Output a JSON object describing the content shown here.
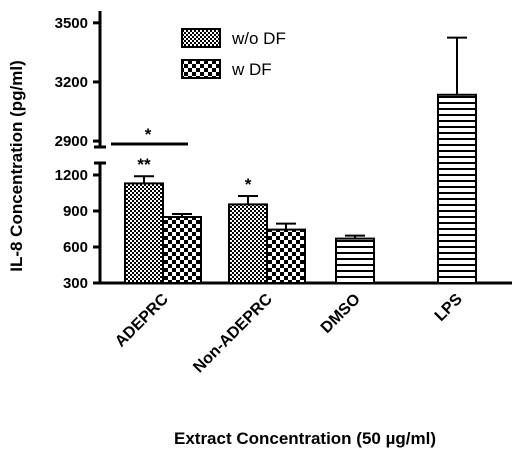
{
  "chart_data": {
    "type": "bar",
    "title": "",
    "xlabel": "Extract Concentration (50 µg/ml)",
    "ylabel": "IL-8 Concentration (pg/ml)",
    "categories": [
      "ADEPRC",
      "Non-ADEPRC",
      "DMSO",
      "LPS"
    ],
    "series": [
      {
        "name": "w/o DF",
        "values": [
          1130,
          955,
          null,
          null
        ],
        "errors": [
          60,
          70,
          null,
          null
        ],
        "pattern": "crosshatch-fine"
      },
      {
        "name": "w DF",
        "values": [
          850,
          745,
          null,
          null
        ],
        "errors": [
          25,
          50,
          null,
          null
        ],
        "pattern": "checker"
      },
      {
        "name": "",
        "values": [
          null,
          null,
          670,
          3135
        ],
        "errors": [
          null,
          null,
          25,
          290
        ],
        "pattern": "horizontal-lines"
      }
    ],
    "y_axis": {
      "broken": true,
      "lower_segment": {
        "range": [
          300,
          1300
        ],
        "ticks": [
          "300",
          "600",
          "900",
          "1200"
        ]
      },
      "upper_segment": {
        "range": [
          2870,
          3560
        ],
        "ticks": [
          "2900",
          "3200",
          "3500"
        ]
      }
    },
    "legend": {
      "position": "top-center"
    },
    "annotations": [
      {
        "text": "*",
        "target": "ADEPRC w/o DF vs w DF bracket"
      },
      {
        "text": "**",
        "target": "ADEPRC w/o DF"
      },
      {
        "text": "*",
        "target": "Non-ADEPRC w/o DF"
      }
    ],
    "grid": false
  }
}
